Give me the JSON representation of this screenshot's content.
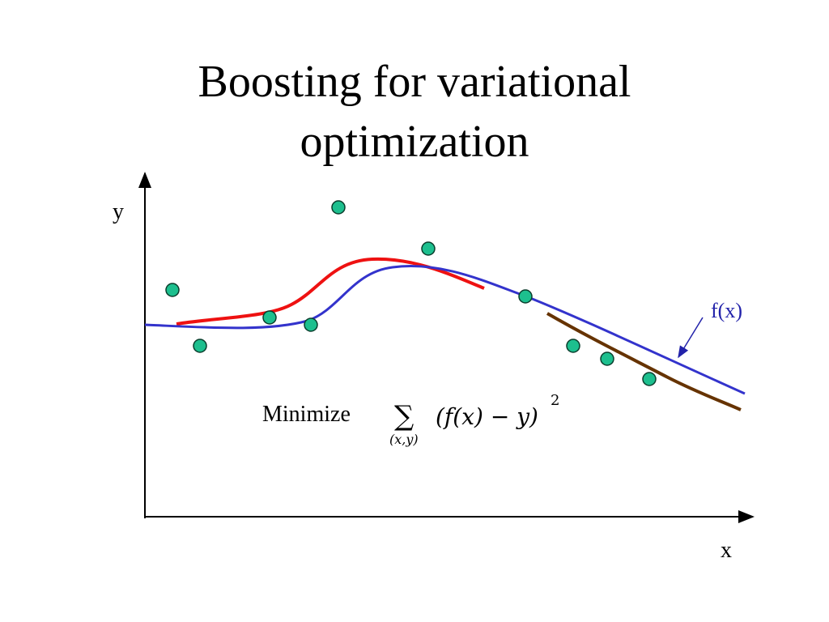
{
  "slide": {
    "title_line_1": "Boosting for variational",
    "title_line_2": "optimization"
  },
  "diagram": {
    "y_axis_label": "y",
    "x_axis_label": "x",
    "curve_label": "f(x)",
    "objective_label": "Minimize",
    "formula": {
      "operator": "∑",
      "subscript": "(x,y)",
      "expression": "(f(x) − y)",
      "exponent": "2"
    }
  },
  "colors": {
    "axis": "#000000",
    "model_curve": "#3333cc",
    "red_component": "#ee1111",
    "brown_component": "#663300",
    "point_fill": "#1dbf8e",
    "point_stroke": "#0a3d2c",
    "curve_label": "#2222aa"
  }
}
